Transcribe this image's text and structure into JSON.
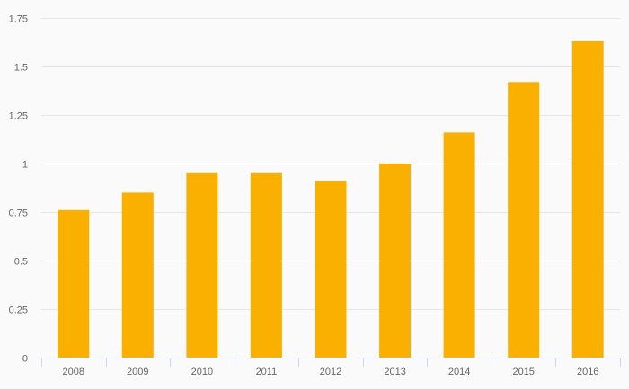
{
  "chart_data": {
    "type": "bar",
    "categories": [
      "2008",
      "2009",
      "2010",
      "2011",
      "2012",
      "2013",
      "2014",
      "2015",
      "2016"
    ],
    "values": [
      0.76,
      0.85,
      0.95,
      0.95,
      0.91,
      1.0,
      1.16,
      1.42,
      1.63
    ],
    "ylim": [
      0,
      1.75
    ],
    "yticks": [
      0,
      0.25,
      0.5,
      0.75,
      1,
      1.25,
      1.5,
      1.75
    ],
    "ytick_labels": [
      "0",
      "0.25",
      "0.5",
      "0.75",
      "1",
      "1.25",
      "1.5",
      "1.75"
    ],
    "bar_color": "#f9b000",
    "grid": true,
    "legend": "none"
  }
}
